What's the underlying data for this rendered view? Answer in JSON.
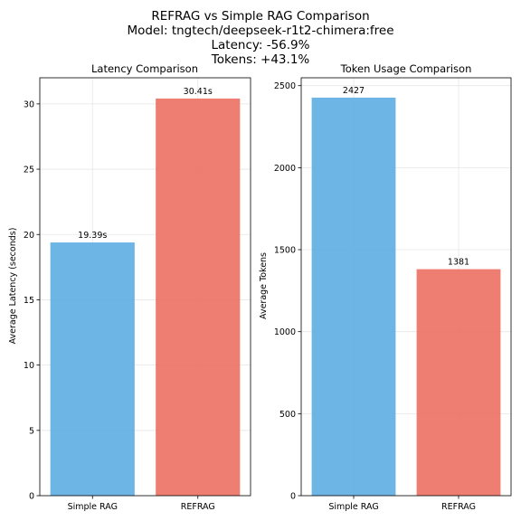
{
  "figure": {
    "title_lines": [
      "REFRAG vs Simple RAG Comparison",
      "Model: tngtech/deepseek-r1t2-chimera:free",
      "Latency: -56.9%",
      "Tokens: +43.1%"
    ]
  },
  "chart_data": [
    {
      "type": "bar",
      "title": "Latency Comparison",
      "xlabel": "",
      "ylabel": "Average Latency (seconds)",
      "categories": [
        "Simple RAG",
        "REFRAG"
      ],
      "values": [
        19.39,
        30.41
      ],
      "data_labels": [
        "19.39s",
        "30.41s"
      ],
      "colors": [
        "#5dade2",
        "#ec7063"
      ],
      "ylim": [
        0,
        32
      ],
      "yticks": [
        0,
        5,
        10,
        15,
        20,
        25,
        30
      ],
      "grid": true
    },
    {
      "type": "bar",
      "title": "Token Usage Comparison",
      "xlabel": "",
      "ylabel": "Average Tokens",
      "categories": [
        "Simple RAG",
        "REFRAG"
      ],
      "values": [
        2427,
        1381
      ],
      "data_labels": [
        "2427",
        "1381"
      ],
      "colors": [
        "#5dade2",
        "#ec7063"
      ],
      "ylim": [
        0,
        2548
      ],
      "yticks": [
        0,
        500,
        1000,
        1500,
        2000,
        2500
      ],
      "grid": true
    }
  ]
}
